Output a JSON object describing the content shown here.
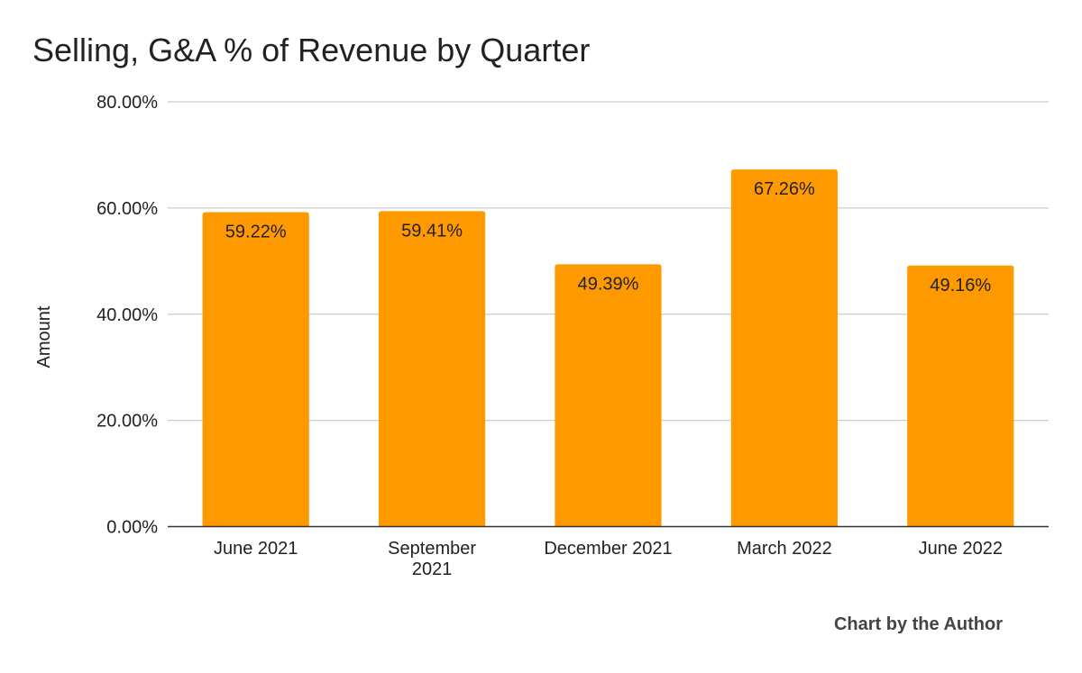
{
  "chart_data": {
    "type": "bar",
    "title": "Selling, G&A % of Revenue by Quarter",
    "xlabel": "",
    "ylabel": "Amount",
    "categories": [
      [
        "June 2021"
      ],
      [
        "September",
        "2021"
      ],
      [
        "December 2021"
      ],
      [
        "March 2022"
      ],
      [
        "June 2022"
      ]
    ],
    "values": [
      59.22,
      59.41,
      49.39,
      67.26,
      49.16
    ],
    "value_labels": [
      "59.22%",
      "59.41%",
      "49.39%",
      "67.26%",
      "49.16%"
    ],
    "ylim": [
      0,
      80
    ],
    "yticks": [
      0,
      20,
      40,
      60,
      80
    ],
    "ytick_labels": [
      "0.00%",
      "20.00%",
      "40.00%",
      "60.00%",
      "80.00%"
    ],
    "grid": true,
    "legend": "none",
    "bar_color": "#ff9900",
    "gridline_color": "#cccccc",
    "axis_color": "#333333",
    "text_color": "#222222"
  },
  "credit": "Chart by the Author"
}
